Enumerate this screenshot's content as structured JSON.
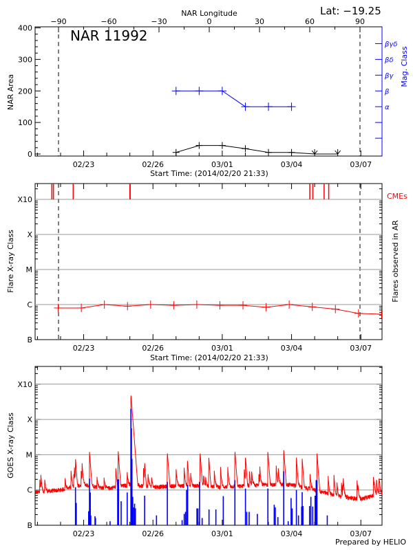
{
  "header": {
    "latitude_label": "Lat: −19.25",
    "region_label": "NAR 11992",
    "footer": "Prepared by HELIO"
  },
  "colors": {
    "area": "#000000",
    "mag_class": "#0000ff",
    "flares": "#ff0000",
    "cme": "#ff0000",
    "goes_long": "#ff0000",
    "goes_events": "#0000ff",
    "grid": "#999999"
  },
  "chart_data": [
    {
      "type": "line",
      "title": "",
      "xlabel": "Start Time: (2014/02/20 21:33)",
      "ylabel": "NAR Area",
      "y2label": "Mag. Class",
      "top_axis_label": "NAR Longitude",
      "top_axis_ticks": [
        -90,
        -60,
        -30,
        0,
        30,
        60,
        90
      ],
      "x_start": "2014-02-20T21:33",
      "x_end": "2014-03-07T22:00",
      "x_tick_labels": [
        "02/23",
        "02/26",
        "03/01",
        "03/04",
        "03/07"
      ],
      "ylim": [
        0,
        400
      ],
      "y_ticks": [
        0,
        100,
        200,
        300,
        400
      ],
      "limb_longitudes": [
        -90,
        90
      ],
      "y2_classes": [
        {
          "label": "α",
          "level": 150
        },
        {
          "label": "β",
          "level": 200
        },
        {
          "label": "βγ",
          "level": 250
        },
        {
          "label": "βδ",
          "level": 300
        },
        {
          "label": "βγδ",
          "level": 350
        }
      ],
      "area_series": {
        "x": [
          "2014-02-27T00:00",
          "2014-02-28T00:00",
          "2014-03-01T00:00",
          "2014-03-02T00:00",
          "2014-03-03T00:00",
          "2014-03-04T00:00",
          "2014-03-05T00:00",
          "2014-03-06T00:00"
        ],
        "values": [
          5,
          27,
          27,
          17,
          5,
          5,
          0,
          0
        ]
      },
      "mag_class_series": {
        "x": [
          "2014-02-27T00:00",
          "2014-02-28T00:00",
          "2014-03-01T00:00",
          "2014-03-02T00:00",
          "2014-03-03T00:00",
          "2014-03-04T00:00"
        ],
        "values": [
          "β",
          "β",
          "β",
          "α",
          "α",
          "α"
        ]
      }
    },
    {
      "type": "line",
      "xlabel": "Start Time: (2014/02/20 21:33)",
      "ylabel": "Flare X-ray Class",
      "y2label": "Flares observed in AR",
      "cme_label": "CMEs",
      "y_scale": "log",
      "y_tick_labels": [
        "B",
        "C",
        "M",
        "X",
        "X10"
      ],
      "x_tick_labels": [
        "02/23",
        "02/26",
        "03/01",
        "03/04",
        "03/07"
      ],
      "grid": true,
      "flares": {
        "x": [
          "2014-02-21T21:33",
          "2014-02-22T21:33",
          "2014-02-23T21:33",
          "2014-02-24T21:33",
          "2014-02-25T21:33",
          "2014-02-26T21:33",
          "2014-02-27T21:33",
          "2014-02-28T21:33",
          "2014-03-01T21:33",
          "2014-03-02T21:33",
          "2014-03-03T21:33",
          "2014-03-04T21:33",
          "2014-03-05T21:33",
          "2014-03-06T21:33",
          "2014-03-07T21:33"
        ],
        "values": [
          "B8.0",
          "B8.0",
          "C1.0",
          "B9.0",
          "C1.0",
          "B9.5",
          "C1.0",
          "B9.5",
          "B9.5",
          "B8.4",
          "C1.0",
          "B8.6",
          "B7.4",
          "B5.6",
          "B5.3"
        ]
      },
      "cmes": [
        "2014-02-21T14:57",
        "2014-02-21T16:36",
        "2014-02-22T13:08",
        "2014-02-25T00:00",
        "2014-02-25T00:20",
        "2014-03-04T18:58",
        "2014-03-04T22:05",
        "2014-03-05T09:50",
        "2014-03-05T14:38"
      ]
    },
    {
      "type": "line",
      "ylabel": "GOES X-ray Class",
      "y_scale": "log",
      "y_tick_labels": [
        "B",
        "C",
        "M",
        "X",
        "X10"
      ],
      "x_tick_labels": [
        "02/23",
        "02/26",
        "03/01",
        "03/04",
        "03/07"
      ],
      "grid": true,
      "goes_background": {
        "x": [
          "2014-02-20T21:33",
          "2014-02-21T00:00",
          "2014-02-22T00:00",
          "2014-02-23T00:00",
          "2014-02-24T00:00",
          "2014-02-25T00:00",
          "2014-02-26T00:00",
          "2014-02-27T00:00",
          "2014-02-28T00:00",
          "2014-03-01T00:00",
          "2014-03-02T00:00",
          "2014-03-03T00:00",
          "2014-03-04T00:00",
          "2014-03-05T00:00",
          "2014-03-06T00:00",
          "2014-03-07T00:00",
          "2014-03-07T22:00"
        ],
        "values": [
          "B9.0",
          "B8.5",
          "C1.0",
          "C1.4",
          "C1.1",
          "C1.4",
          "C1.2",
          "C1.3",
          "C1.3",
          "C1.2",
          "C1.3",
          "C1.4",
          "C1.4",
          "C1.0",
          "B6.5",
          "B5.5",
          "B8.0"
        ]
      },
      "goes_peaks": [
        [
          "2014-02-22T15:30",
          "C7.8"
        ],
        [
          "2014-02-23T06:03",
          "M1.2"
        ],
        [
          "2014-02-24T11:50",
          "M1.3"
        ],
        [
          "2014-02-25T01:05",
          "X5.3"
        ],
        [
          "2014-02-25T15:20",
          "C6.0"
        ],
        [
          "2014-02-26T14:56",
          "M1.2"
        ],
        [
          "2014-02-27T11:47",
          "C7.3"
        ],
        [
          "2014-02-28T00:56",
          "M1.2"
        ],
        [
          "2014-02-28T10:00",
          "C8.5"
        ],
        [
          "2014-03-01T13:08",
          "M1.3"
        ],
        [
          "2014-03-02T00:06",
          "C9.0"
        ],
        [
          "2014-03-02T23:24",
          "M1.2"
        ],
        [
          "2014-03-03T15:50",
          "M1.4"
        ],
        [
          "2014-03-04T05:01",
          "C8.5"
        ],
        [
          "2014-03-04T11:02",
          "C7.8"
        ],
        [
          "2014-03-05T02:24",
          "M1.1"
        ],
        [
          "2014-03-06T03:53",
          "C1.6"
        ],
        [
          "2014-03-07T18:50",
          "C2.2"
        ]
      ],
      "goes_events": [
        [
          "2014-02-22T15:30",
          "C1.2"
        ],
        [
          "2014-02-22T16:19",
          "B4.3"
        ],
        [
          "2014-02-23T05:12",
          "B2.5"
        ],
        [
          "2014-02-23T06:03",
          "C2.1"
        ],
        [
          "2014-02-23T06:52",
          "B8.5"
        ],
        [
          "2014-02-23T07:25",
          "B1.9"
        ],
        [
          "2014-02-23T11:47",
          "B1.8"
        ],
        [
          "2014-02-23T12:20",
          "B1.6"
        ],
        [
          "2014-02-24T03:26",
          "B1.3"
        ],
        [
          "2014-02-24T11:22",
          "C2.0"
        ],
        [
          "2014-02-24T12:12",
          "C2.0"
        ],
        [
          "2014-02-24T14:57",
          "B4.8"
        ],
        [
          "2014-02-24T21:14",
          "B8.5"
        ],
        [
          "2014-02-25T01:05",
          "X2.0"
        ],
        [
          "2014-02-25T01:38",
          "M5.6"
        ],
        [
          "2014-02-25T02:11",
          "C7.6"
        ],
        [
          "2014-02-25T03:00",
          "B6.4"
        ],
        [
          "2014-02-25T03:50",
          "B3.2"
        ],
        [
          "2014-02-25T04:55",
          "B4.1"
        ],
        [
          "2014-02-25T05:46",
          "B3.0"
        ],
        [
          "2014-02-25T15:20",
          "B6.9"
        ],
        [
          "2014-02-26T03:40",
          "B1.9"
        ],
        [
          "2014-02-26T14:56",
          "C1.7"
        ],
        [
          "2014-02-27T06:17",
          "B1.4"
        ],
        [
          "2014-02-27T08:28",
          "B2.1"
        ],
        [
          "2014-02-27T09:50",
          "B2.4"
        ],
        [
          "2014-02-27T10:57",
          "C1.0"
        ],
        [
          "2014-02-27T12:03",
          "C1.4"
        ],
        [
          "2014-02-27T21:39",
          "B3.0"
        ],
        [
          "2014-02-27T22:44",
          "B3.0"
        ],
        [
          "2014-02-28T00:23",
          "C1.7"
        ],
        [
          "2014-02-28T03:07",
          "B1.6"
        ],
        [
          "2014-02-28T10:15",
          "B2.8"
        ],
        [
          "2014-02-28T17:23",
          "B2.8"
        ],
        [
          "2014-03-01T01:03",
          "B6.7"
        ],
        [
          "2014-03-01T13:08",
          "C1.9"
        ],
        [
          "2014-03-02T00:06",
          "C1.1"
        ],
        [
          "2014-03-02T01:28",
          "B2.4"
        ],
        [
          "2014-03-02T03:56",
          "B2.4"
        ],
        [
          "2014-03-02T12:26",
          "B2.1"
        ],
        [
          "2014-03-02T23:24",
          "C1.1"
        ],
        [
          "2014-03-03T05:59",
          "B3.8"
        ],
        [
          "2014-03-03T07:05",
          "B3.2"
        ],
        [
          "2014-03-03T09:49",
          "B1.7"
        ],
        [
          "2014-03-03T15:50",
          "C3.4"
        ],
        [
          "2014-03-03T20:31",
          "B1.3"
        ],
        [
          "2014-03-03T23:31",
          "B5.9"
        ],
        [
          "2014-03-04T00:37",
          "B3.0"
        ],
        [
          "2014-03-04T05:01",
          "C1.0"
        ],
        [
          "2014-03-04T07:12",
          "B1.9"
        ],
        [
          "2014-03-04T10:29",
          "B3.4"
        ],
        [
          "2014-03-04T11:02",
          "B8.7"
        ],
        [
          "2014-03-04T11:51",
          "B3.5"
        ],
        [
          "2014-03-04T18:43",
          "B3.5"
        ],
        [
          "2014-03-04T20:05",
          "B6.4"
        ],
        [
          "2014-03-04T22:00",
          "B3.4"
        ],
        [
          "2014-03-05T00:29",
          "B6.9"
        ],
        [
          "2014-03-05T01:35",
          "C1.9"
        ],
        [
          "2014-03-05T02:24",
          "C1.9"
        ],
        [
          "2014-03-05T13:06",
          "B1.9"
        ],
        [
          "2014-03-07T18:50",
          "B1.0"
        ]
      ]
    }
  ]
}
